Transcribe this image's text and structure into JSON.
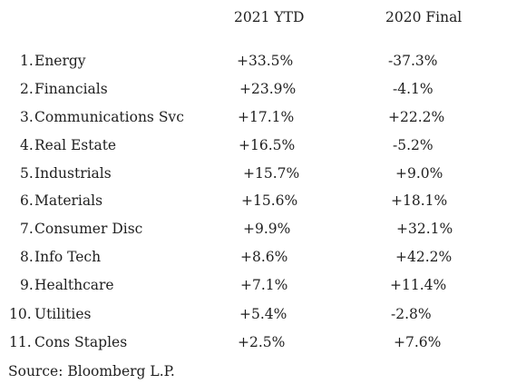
{
  "table": {
    "headers": {
      "ytd": "2021 YTD",
      "final": "2020 Final"
    },
    "rows": [
      {
        "rank": "1.",
        "sector": "Energy",
        "ytd": "+33.5%",
        "final": "-37.3%"
      },
      {
        "rank": "2.",
        "sector": "Financials",
        "ytd": "+23.9%",
        "final": "-4.1%"
      },
      {
        "rank": "3.",
        "sector": "Communications Svc",
        "ytd": "+17.1%",
        "final": "+22.2%"
      },
      {
        "rank": "4.",
        "sector": "Real Estate",
        "ytd": "+16.5%",
        "final": "-5.2%"
      },
      {
        "rank": "5.",
        "sector": "Industrials",
        "ytd": "+15.7%",
        "final": "+9.0%"
      },
      {
        "rank": "6.",
        "sector": "Materials",
        "ytd": "+15.6%",
        "final": "+18.1%"
      },
      {
        "rank": "7.",
        "sector": "Consumer Disc",
        "ytd": "+9.9%",
        "final": "+32.1%"
      },
      {
        "rank": "8.",
        "sector": "Info Tech",
        "ytd": "+8.6%",
        "final": "+42.2%"
      },
      {
        "rank": "9.",
        "sector": "Healthcare",
        "ytd": "+7.1%",
        "final": "+11.4%"
      },
      {
        "rank": "10.",
        "sector": "Utilities",
        "ytd": "+5.4%",
        "final": "-2.8%"
      },
      {
        "rank": "11.",
        "sector": "Cons Staples",
        "ytd": "+2.5%",
        "final": "+7.6%"
      }
    ]
  },
  "source": "Source: Bloomberg L.P."
}
